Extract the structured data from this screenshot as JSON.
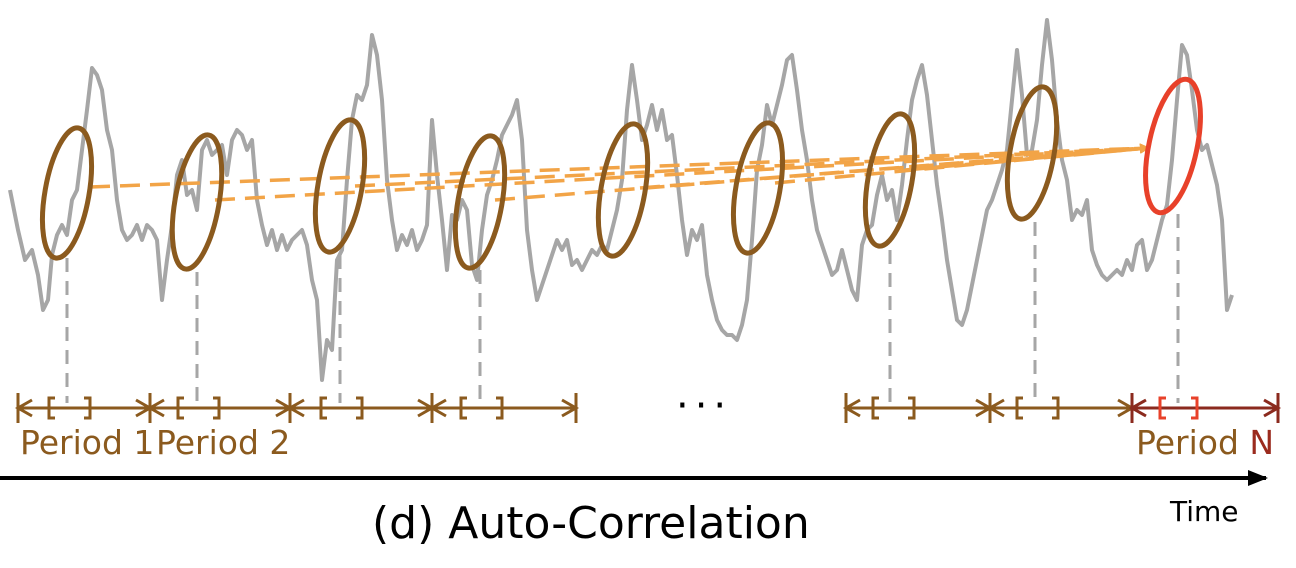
{
  "caption": "(d) Auto-Correlation",
  "time_label": "Time",
  "ellipsis": "···",
  "period_labels": {
    "first": "Period 1",
    "second": "Period 2",
    "last_word": "Period",
    "last_number": "N"
  },
  "colors": {
    "series": "#A6A6A6",
    "ellipse": "#8B5A1E",
    "ellipse_current": "#E8412A",
    "arrow": "#F2A447",
    "period_bracket": "#8B5A1E",
    "period_bracket_last": "#8B2A1E",
    "time_axis": "#000000"
  }
}
